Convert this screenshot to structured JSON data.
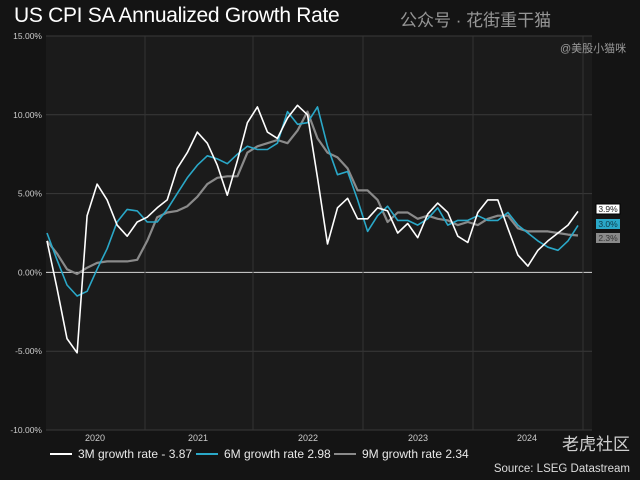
{
  "chart_data": {
    "type": "line",
    "title": "US CPI SA Annualized Growth Rate",
    "xlabel": "",
    "ylabel": "",
    "ylim": [
      -10,
      15
    ],
    "yticks": [
      "15.00%",
      "10.00%",
      "5.00%",
      "0.00%",
      "-5.00%",
      "-10.00%"
    ],
    "ytick_values": [
      15,
      10,
      5,
      0,
      -5,
      -10
    ],
    "xticks": [
      "2020",
      "2021",
      "2022",
      "2023",
      "2024"
    ],
    "grid": true,
    "legend_position": "bottom",
    "series": [
      {
        "name": "3M growth rate - 3.87",
        "color": "#ffffff",
        "end_label": "3.9%",
        "values": [
          2.0,
          -1.0,
          -4.2,
          -5.1,
          3.6,
          5.6,
          4.6,
          3.0,
          2.3,
          3.2,
          3.5,
          4.1,
          4.6,
          6.6,
          7.6,
          8.9,
          8.2,
          6.8,
          4.9,
          7.1,
          9.5,
          10.5,
          8.9,
          8.5,
          9.8,
          10.6,
          10.0,
          6.0,
          1.8,
          4.1,
          4.7,
          3.4,
          3.4,
          4.1,
          3.9,
          2.5,
          3.1,
          2.2,
          3.7,
          4.4,
          3.8,
          2.3,
          1.9,
          3.8,
          4.6,
          4.6,
          2.8,
          1.1,
          0.4,
          1.4,
          2.0,
          2.5,
          3.0,
          3.87
        ]
      },
      {
        "name": "6M growth rate 2.98",
        "color": "#2aa8c8",
        "end_label": "3.0%",
        "values": [
          2.5,
          0.8,
          -0.8,
          -1.5,
          -1.2,
          0.2,
          1.5,
          3.2,
          4.0,
          3.9,
          3.2,
          3.2,
          4.0,
          5.0,
          6.0,
          6.8,
          7.4,
          7.2,
          6.9,
          7.5,
          8.0,
          7.8,
          7.8,
          8.2,
          10.2,
          9.4,
          9.5,
          10.5,
          8.0,
          6.2,
          6.4,
          4.6,
          2.6,
          3.6,
          4.2,
          3.3,
          3.3,
          3.0,
          3.4,
          4.1,
          3.0,
          3.3,
          3.3,
          3.6,
          3.3,
          3.3,
          3.8,
          3.0,
          2.5,
          2.0,
          1.6,
          1.4,
          2.0,
          2.98
        ]
      },
      {
        "name": "9M growth rate 2.34",
        "color": "#8a8a8a",
        "end_label": "2.3%",
        "values": [
          2.0,
          1.2,
          0.2,
          -0.1,
          0.3,
          0.6,
          0.7,
          0.7,
          0.7,
          0.8,
          2.0,
          3.5,
          3.8,
          3.9,
          4.2,
          4.8,
          5.6,
          6.0,
          6.1,
          6.1,
          7.6,
          8.0,
          8.2,
          8.4,
          8.2,
          9.0,
          10.2,
          8.5,
          7.6,
          7.3,
          6.6,
          5.2,
          5.2,
          4.6,
          3.2,
          3.8,
          3.8,
          3.4,
          3.6,
          3.4,
          3.3,
          3.0,
          3.2,
          3.0,
          3.4,
          3.6,
          3.6,
          2.8,
          2.6,
          2.6,
          2.6,
          2.5,
          2.4,
          2.34
        ]
      }
    ],
    "source": "Source: LSEG Datastream"
  },
  "watermark": {
    "line1": "公众号 · 花街重干猫",
    "line2": "老虎社区",
    "line3": "@美股小猫咪"
  }
}
